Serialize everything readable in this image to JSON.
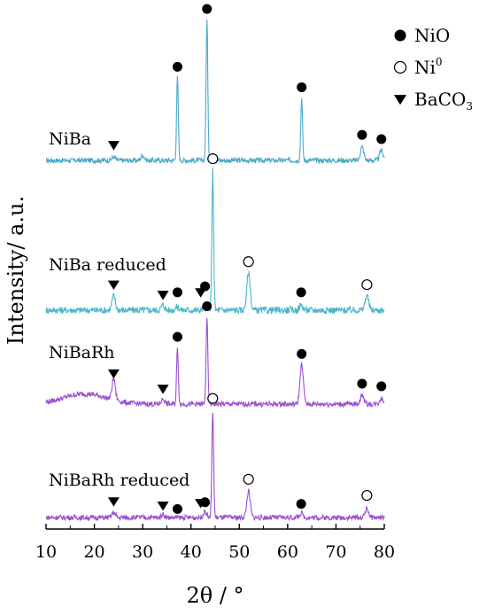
{
  "chart_data": {
    "type": "line",
    "title": "",
    "xlabel": "2θ / °",
    "ylabel": "Intensity/ a.u.",
    "xlim": [
      10,
      80
    ],
    "xticks": [
      "10",
      "20",
      "30",
      "40",
      "50",
      "60",
      "70",
      "80"
    ],
    "grid": false,
    "legend_placement": "top-right",
    "legend": [
      {
        "marker": "filled-circle",
        "text": "NiO",
        "sup": "",
        "sub": ""
      },
      {
        "marker": "open-circle",
        "text": "Ni",
        "sup": "0",
        "sub": ""
      },
      {
        "marker": "filled-triangle",
        "text": "BaCO",
        "sup": "",
        "sub": "3"
      }
    ],
    "series": [
      {
        "name": "NiBa",
        "color": "#4aa8c8",
        "baseline": 0,
        "noise": 0.6,
        "peaks": [
          {
            "x": 24.0,
            "h": 0.4
          },
          {
            "x": 30.0,
            "h": 0.6
          },
          {
            "x": 37.2,
            "h": 9.8
          },
          {
            "x": 43.3,
            "h": 16.5
          },
          {
            "x": 62.9,
            "h": 7.3
          },
          {
            "x": 75.4,
            "h": 1.6
          },
          {
            "x": 79.4,
            "h": 1.2
          }
        ],
        "markers": [
          {
            "x": 24.0,
            "type": "filled-triangle",
            "h": 1.8
          },
          {
            "x": 37.2,
            "type": "filled-circle",
            "h": 11.0
          },
          {
            "x": 43.3,
            "type": "filled-circle",
            "h": 17.8
          },
          {
            "x": 62.9,
            "type": "filled-circle",
            "h": 8.6
          },
          {
            "x": 75.4,
            "type": "filled-circle",
            "h": 3.0
          },
          {
            "x": 79.4,
            "type": "filled-circle",
            "h": 2.5
          }
        ]
      },
      {
        "name": "NiBa reduced",
        "color": "#4ab6c8",
        "baseline": 0,
        "noise": 0.8,
        "peaks": [
          {
            "x": 24.0,
            "h": 1.7
          },
          {
            "x": 34.2,
            "h": 0.6
          },
          {
            "x": 37.2,
            "h": 0.4
          },
          {
            "x": 42.9,
            "h": 0.7
          },
          {
            "x": 44.5,
            "h": 16.5
          },
          {
            "x": 51.9,
            "h": 4.4
          },
          {
            "x": 62.8,
            "h": 0.6
          },
          {
            "x": 76.4,
            "h": 1.8
          }
        ],
        "markers": [
          {
            "x": 24.0,
            "type": "filled-triangle",
            "h": 3.0
          },
          {
            "x": 34.2,
            "type": "filled-triangle",
            "h": 1.8
          },
          {
            "x": 37.2,
            "type": "filled-circle",
            "h": 2.1
          },
          {
            "x": 42.0,
            "type": "filled-triangle",
            "h": 2.1
          },
          {
            "x": 42.9,
            "type": "filled-circle",
            "h": 2.8
          },
          {
            "x": 44.5,
            "type": "open-circle",
            "h": 17.8
          },
          {
            "x": 51.9,
            "type": "open-circle",
            "h": 5.7
          },
          {
            "x": 62.8,
            "type": "filled-circle",
            "h": 2.1
          },
          {
            "x": 76.4,
            "type": "open-circle",
            "h": 3.0
          }
        ]
      },
      {
        "name": "NiBaRh",
        "color": "#9a4fd0",
        "baseline": 0,
        "noise": 0.6,
        "peaks": [
          {
            "x": 24.0,
            "h": 2.5
          },
          {
            "x": 34.2,
            "h": 0.6
          },
          {
            "x": 37.2,
            "h": 6.6
          },
          {
            "x": 43.3,
            "h": 10.2
          },
          {
            "x": 62.9,
            "h": 4.6
          },
          {
            "x": 75.4,
            "h": 1.1
          },
          {
            "x": 79.4,
            "h": 0.7
          }
        ],
        "markers": [
          {
            "x": 24.0,
            "type": "filled-triangle",
            "h": 3.6
          },
          {
            "x": 34.2,
            "type": "filled-triangle",
            "h": 1.8
          },
          {
            "x": 37.2,
            "type": "filled-circle",
            "h": 7.9
          },
          {
            "x": 43.3,
            "type": "filled-circle",
            "h": 11.5
          },
          {
            "x": 62.9,
            "type": "filled-circle",
            "h": 5.9
          },
          {
            "x": 75.4,
            "type": "filled-circle",
            "h": 2.4
          },
          {
            "x": 79.4,
            "type": "filled-circle",
            "h": 2.1
          }
        ]
      },
      {
        "name": "NiBaRh reduced",
        "color": "#9a4fd0",
        "baseline": 0,
        "noise": 0.6,
        "peaks": [
          {
            "x": 24.0,
            "h": 0.6
          },
          {
            "x": 34.2,
            "h": 0.4
          },
          {
            "x": 42.9,
            "h": 0.7
          },
          {
            "x": 44.5,
            "h": 12.6
          },
          {
            "x": 51.9,
            "h": 3.1
          },
          {
            "x": 62.8,
            "h": 0.5
          },
          {
            "x": 76.4,
            "h": 1.1
          }
        ],
        "markers": [
          {
            "x": 24.0,
            "type": "filled-triangle",
            "h": 1.9
          },
          {
            "x": 34.2,
            "type": "filled-triangle",
            "h": 1.4
          },
          {
            "x": 37.2,
            "type": "filled-circle",
            "h": 1.0
          },
          {
            "x": 42.0,
            "type": "filled-triangle",
            "h": 1.7
          },
          {
            "x": 42.9,
            "type": "filled-circle",
            "h": 1.8
          },
          {
            "x": 44.5,
            "type": "open-circle",
            "h": 14.0
          },
          {
            "x": 51.9,
            "type": "open-circle",
            "h": 4.5
          },
          {
            "x": 62.8,
            "type": "filled-circle",
            "h": 1.6
          },
          {
            "x": 76.4,
            "type": "open-circle",
            "h": 2.6
          }
        ]
      }
    ]
  }
}
